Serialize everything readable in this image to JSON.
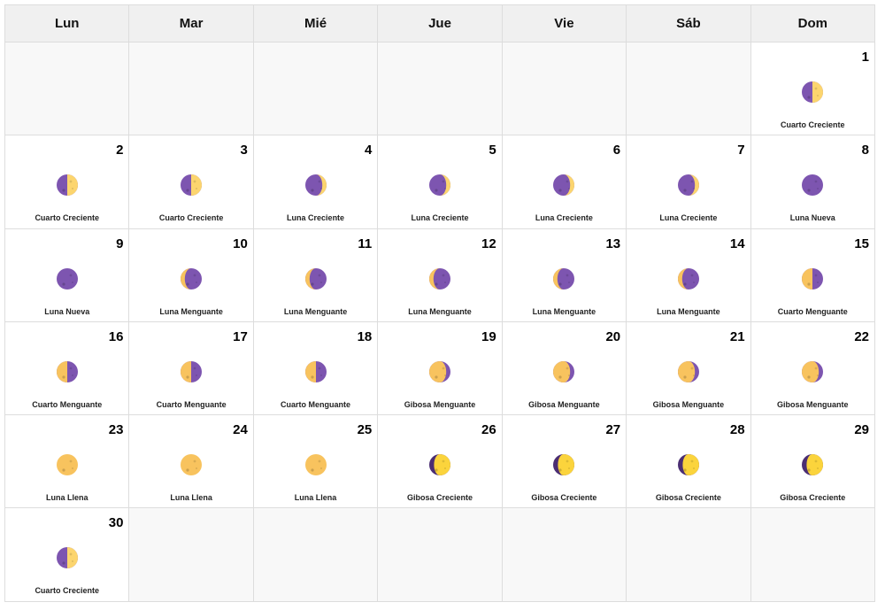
{
  "weekdays": [
    "Lun",
    "Mar",
    "Mié",
    "Jue",
    "Vie",
    "Sáb",
    "Dom"
  ],
  "leading_empty": 6,
  "colors": {
    "purple": "#7d55b0",
    "dark_purple": "#4b2e73",
    "light": "#fcd56e",
    "full": "#f8c35e",
    "bright": "#fbd43c"
  },
  "days": [
    {
      "day": "1",
      "label": "Cuarto Creciente",
      "phase": "first-quarter"
    },
    {
      "day": "2",
      "label": "Cuarto Creciente",
      "phase": "first-quarter"
    },
    {
      "day": "3",
      "label": "Cuarto Creciente",
      "phase": "first-quarter"
    },
    {
      "day": "4",
      "label": "Luna Creciente",
      "phase": "waxing-crescent"
    },
    {
      "day": "5",
      "label": "Luna Creciente",
      "phase": "waxing-crescent"
    },
    {
      "day": "6",
      "label": "Luna Creciente",
      "phase": "waxing-crescent"
    },
    {
      "day": "7",
      "label": "Luna Creciente",
      "phase": "waxing-crescent"
    },
    {
      "day": "8",
      "label": "Luna Nueva",
      "phase": "new"
    },
    {
      "day": "9",
      "label": "Luna Nueva",
      "phase": "new"
    },
    {
      "day": "10",
      "label": "Luna Menguante",
      "phase": "waning-crescent"
    },
    {
      "day": "11",
      "label": "Luna Menguante",
      "phase": "waning-crescent"
    },
    {
      "day": "12",
      "label": "Luna Menguante",
      "phase": "waning-crescent"
    },
    {
      "day": "13",
      "label": "Luna Menguante",
      "phase": "waning-crescent"
    },
    {
      "day": "14",
      "label": "Luna Menguante",
      "phase": "waning-crescent"
    },
    {
      "day": "15",
      "label": "Cuarto Menguante",
      "phase": "last-quarter"
    },
    {
      "day": "16",
      "label": "Cuarto Menguante",
      "phase": "last-quarter"
    },
    {
      "day": "17",
      "label": "Cuarto Menguante",
      "phase": "last-quarter"
    },
    {
      "day": "18",
      "label": "Cuarto Menguante",
      "phase": "last-quarter"
    },
    {
      "day": "19",
      "label": "Gibosa Menguante",
      "phase": "waning-gibbous"
    },
    {
      "day": "20",
      "label": "Gibosa Menguante",
      "phase": "waning-gibbous"
    },
    {
      "day": "21",
      "label": "Gibosa Menguante",
      "phase": "waning-gibbous"
    },
    {
      "day": "22",
      "label": "Gibosa Menguante",
      "phase": "waning-gibbous"
    },
    {
      "day": "23",
      "label": "Luna Llena",
      "phase": "full"
    },
    {
      "day": "24",
      "label": "Luna Llena",
      "phase": "full"
    },
    {
      "day": "25",
      "label": "Luna Llena",
      "phase": "full"
    },
    {
      "day": "26",
      "label": "Gibosa Creciente",
      "phase": "waxing-gibbous"
    },
    {
      "day": "27",
      "label": "Gibosa Creciente",
      "phase": "waxing-gibbous"
    },
    {
      "day": "28",
      "label": "Gibosa Creciente",
      "phase": "waxing-gibbous"
    },
    {
      "day": "29",
      "label": "Gibosa Creciente",
      "phase": "waxing-gibbous"
    },
    {
      "day": "30",
      "label": "Cuarto Creciente",
      "phase": "first-quarter"
    }
  ]
}
